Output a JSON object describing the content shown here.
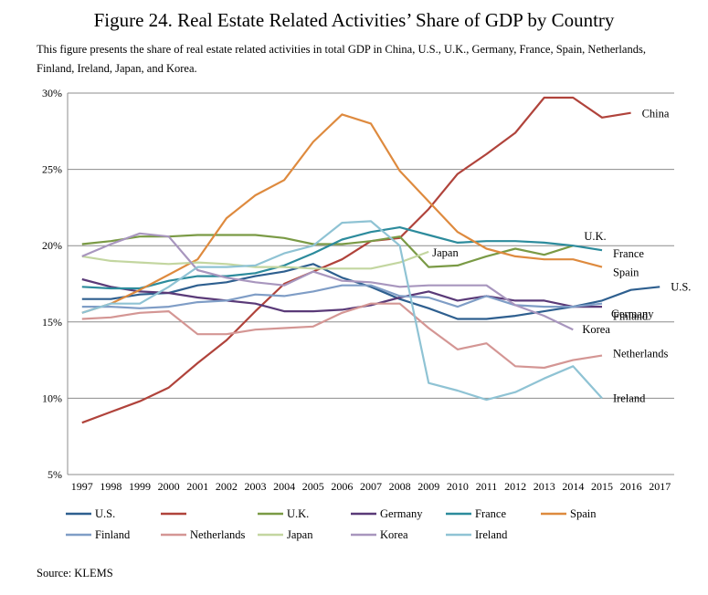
{
  "title": "Figure 24. Real Estate Related Activities’ Share of GDP by Country",
  "subtitle": "This figure presents the share of real estate related activities in total GDP in China, U.S., U.K., Germany, France, Spain, Netherlands, Finland, Ireland, Japan, and Korea.",
  "source": "Source: KLEMS",
  "chart_data": {
    "type": "line",
    "x": [
      1997,
      1998,
      1999,
      2000,
      2001,
      2002,
      2003,
      2004,
      2005,
      2006,
      2007,
      2008,
      2009,
      2010,
      2011,
      2012,
      2013,
      2014,
      2015,
      2016,
      2017
    ],
    "y_ticks": [
      "5%",
      "10%",
      "15%",
      "20%",
      "25%",
      "30%"
    ],
    "ylim": [
      5,
      30
    ],
    "grid": true,
    "legend_position": "bottom",
    "series": [
      {
        "name": "U.S.",
        "end_label": "U.S.",
        "color": "#2e5f8f",
        "values": [
          16.5,
          16.5,
          16.8,
          16.9,
          17.4,
          17.6,
          18.0,
          18.3,
          18.8,
          17.9,
          17.3,
          16.5,
          15.9,
          15.2,
          15.2,
          15.4,
          15.7,
          16.0,
          16.4,
          17.1,
          17.3
        ]
      },
      {
        "name": "",
        "end_label": "China",
        "color": "#b0433b",
        "values": [
          8.4,
          9.1,
          9.8,
          10.7,
          12.3,
          13.8,
          15.7,
          17.5,
          18.3,
          19.1,
          20.3,
          20.5,
          22.4,
          24.7,
          26.0,
          27.4,
          29.7,
          29.7,
          28.4,
          28.7,
          null
        ]
      },
      {
        "name": "U.K.",
        "end_label": "U.K.",
        "color": "#7a9a45",
        "values": [
          20.1,
          20.3,
          20.6,
          20.6,
          20.7,
          20.7,
          20.7,
          20.5,
          20.1,
          20.1,
          20.3,
          20.6,
          18.6,
          18.7,
          19.3,
          19.8,
          19.4,
          20.0,
          null,
          null,
          null
        ]
      },
      {
        "name": "Germany",
        "end_label": "Germany",
        "color": "#5a3a78",
        "values": [
          17.8,
          17.3,
          17.0,
          16.9,
          16.6,
          16.4,
          16.2,
          15.7,
          15.7,
          15.8,
          16.1,
          16.6,
          17.0,
          16.4,
          16.7,
          16.4,
          16.4,
          16.0,
          16.0,
          null,
          null
        ]
      },
      {
        "name": "France",
        "end_label": "France",
        "color": "#2c8b9c",
        "values": [
          17.3,
          17.2,
          17.2,
          17.7,
          18.0,
          18.0,
          18.2,
          18.7,
          19.5,
          20.4,
          20.9,
          21.2,
          20.7,
          20.2,
          20.3,
          20.3,
          20.2,
          20.0,
          19.7,
          null,
          null
        ]
      },
      {
        "name": "Spain",
        "end_label": "Spain",
        "color": "#de8a3e",
        "values": [
          15.6,
          16.2,
          17.1,
          18.1,
          19.1,
          21.8,
          23.3,
          24.3,
          26.8,
          28.6,
          28.0,
          24.9,
          22.9,
          20.9,
          19.8,
          19.3,
          19.1,
          19.1,
          18.6,
          null,
          null
        ]
      },
      {
        "name": "Finland",
        "end_label": "Finland",
        "color": "#7f9dc6",
        "values": [
          16.0,
          16.0,
          15.9,
          16.0,
          16.3,
          16.4,
          16.8,
          16.7,
          17.0,
          17.4,
          17.4,
          16.7,
          16.6,
          16.0,
          16.7,
          16.1,
          16.0,
          16.0,
          16.2,
          null,
          null
        ]
      },
      {
        "name": "Netherlands",
        "end_label": "Netherlands",
        "color": "#d49694",
        "values": [
          15.2,
          15.3,
          15.6,
          15.7,
          14.2,
          14.2,
          14.5,
          14.6,
          14.7,
          15.6,
          16.2,
          16.2,
          14.6,
          13.2,
          13.6,
          12.1,
          12.0,
          12.5,
          12.8,
          null,
          null
        ]
      },
      {
        "name": "Japan",
        "end_label": "Japan",
        "color": "#c3d6a0",
        "values": [
          19.3,
          19.0,
          18.9,
          18.8,
          18.9,
          18.8,
          18.6,
          18.6,
          18.5,
          18.5,
          18.5,
          18.9,
          19.6,
          null,
          null,
          null,
          null,
          null,
          null,
          null,
          null
        ]
      },
      {
        "name": "Korea",
        "end_label": "Korea",
        "color": "#a896be",
        "values": [
          19.3,
          20.1,
          20.8,
          20.6,
          18.4,
          17.9,
          17.6,
          17.4,
          18.3,
          17.7,
          17.6,
          17.3,
          17.4,
          17.4,
          17.4,
          16.1,
          15.4,
          14.5,
          null,
          null,
          null
        ]
      },
      {
        "name": "Ireland",
        "end_label": "Ireland",
        "color": "#8fc3d4",
        "values": [
          15.6,
          16.2,
          16.2,
          17.3,
          18.6,
          18.6,
          18.7,
          19.5,
          20.0,
          21.5,
          21.6,
          20.0,
          11.0,
          10.5,
          9.9,
          10.4,
          11.3,
          12.1,
          10.0,
          null,
          null
        ]
      }
    ]
  }
}
